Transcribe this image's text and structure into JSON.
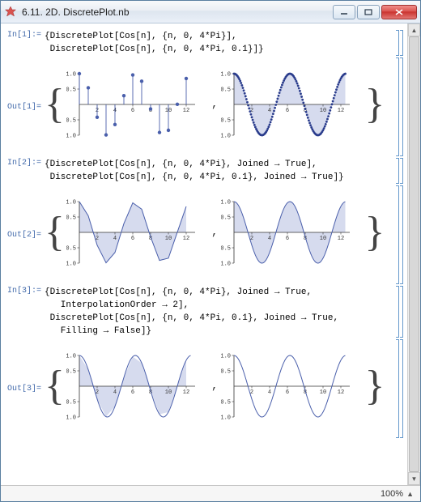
{
  "window": {
    "title": "6.11. 2D. DiscretePlot.nb"
  },
  "statusbar": {
    "zoom": "100%"
  },
  "colors": {
    "line": "#4a5fab",
    "fill": "#c8cfe8",
    "axis": "#333333",
    "tick": "#333333",
    "background": "#ffffff",
    "cell_bracket": "#6699cc",
    "in_out_label": "#4169aa"
  },
  "plot_common": {
    "xlim": [
      0,
      13
    ],
    "ylim": [
      -1.0,
      1.0
    ],
    "xticks": [
      2,
      4,
      6,
      8,
      10,
      12
    ],
    "yticks": [
      -1.0,
      -0.5,
      0.5,
      1.0
    ],
    "axis_fontsize": 7
  },
  "cells": [
    {
      "in_label": "In[1]:=",
      "out_label": "Out[1]=",
      "code": [
        "{DiscretePlot[Cos[n], {n, 0, 4*Pi}],",
        " DiscretePlot[Cos[n], {n, 0, 4*Pi, 0.1}]}"
      ],
      "plots": [
        {
          "type": "discrete_stems",
          "step": 1,
          "marker": "circle",
          "marker_size": 2.2,
          "line_color": "#4a5fab",
          "marker_color": "#4a5fab",
          "fill": false
        },
        {
          "type": "discrete_dense_dots",
          "step": 0.1,
          "marker": "circle",
          "marker_size": 1.4,
          "line_color": "#4a5fab",
          "marker_color": "#2a3c8c",
          "fill_color": "#c8cfe8",
          "fill": true
        }
      ]
    },
    {
      "in_label": "In[2]:=",
      "out_label": "Out[2]=",
      "code": [
        "{DiscretePlot[Cos[n], {n, 0, 4*Pi}, Joined → True],",
        " DiscretePlot[Cos[n], {n, 0, 4*Pi, 0.1}, Joined → True]}"
      ],
      "plots": [
        {
          "type": "joined_coarse_filled",
          "step": 1,
          "line_color": "#4a5fab",
          "fill_color": "#c8cfe8",
          "line_width": 1,
          "fill": true
        },
        {
          "type": "joined_fine_filled",
          "step": 0.1,
          "line_color": "#4a5fab",
          "fill_color": "#c8cfe8",
          "line_width": 1,
          "fill": true
        }
      ]
    },
    {
      "in_label": "In[3]:=",
      "out_label": "Out[3]=",
      "code": [
        "{DiscretePlot[Cos[n], {n, 0, 4*Pi}, Joined → True,",
        "   InterpolationOrder → 2],",
        " DiscretePlot[Cos[n], {n, 0, 4*Pi, 0.1}, Joined → True,",
        "   Filling → False]}"
      ],
      "plots": [
        {
          "type": "joined_interp_filled",
          "step": 1,
          "interp_order": 2,
          "line_color": "#4a5fab",
          "fill_color": "#c8cfe8",
          "line_width": 1,
          "fill": true
        },
        {
          "type": "joined_fine_nofill",
          "step": 0.1,
          "line_color": "#4a5fab",
          "line_width": 1,
          "fill": false
        }
      ]
    }
  ]
}
